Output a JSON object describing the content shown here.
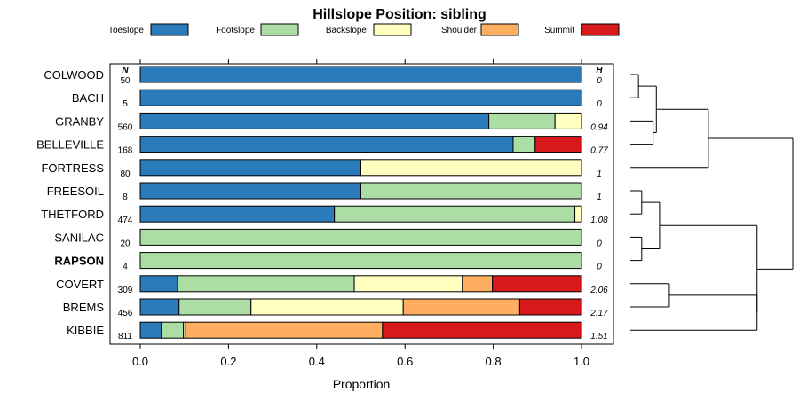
{
  "chart_data": {
    "type": "bar",
    "orientation": "horizontal",
    "stacked": true,
    "title": "Hillslope Position: sibling",
    "xlabel": "Proportion",
    "ylabel": "",
    "xlim": [
      0,
      1
    ],
    "x_ticks": [
      "0.0",
      "0.2",
      "0.4",
      "0.6",
      "0.8",
      "1.0"
    ],
    "x_tick_values": [
      0,
      0.2,
      0.4,
      0.6,
      0.8,
      1.0
    ],
    "n_header": "N",
    "h_header": "H",
    "legend_position": "top",
    "colors": {
      "Toeslope": "#2b7bba",
      "Footslope": "#abdda4",
      "Backslope": "#ffffbf",
      "Shoulder": "#fdae61",
      "Summit": "#d7191c"
    },
    "legend": [
      "Toeslope",
      "Footslope",
      "Backslope",
      "Shoulder",
      "Summit"
    ],
    "categories": [
      "COLWOOD",
      "BACH",
      "GRANBY",
      "BELLEVILLE",
      "FORTRESS",
      "FREESOIL",
      "THETFORD",
      "SANILAC",
      "RAPSON",
      "COVERT",
      "BREMS",
      "KIBBIE"
    ],
    "highlight": "RAPSON",
    "n": [
      "50",
      "5",
      "560",
      "168",
      "80",
      "8",
      "474",
      "20",
      "4",
      "309",
      "456",
      "811"
    ],
    "h": [
      "0",
      "0",
      "0.94",
      "0.77",
      "1",
      "1",
      "1.08",
      "0",
      "0",
      "2.06",
      "2.17",
      "1.51"
    ],
    "series": [
      {
        "name": "Toeslope",
        "values": [
          1.0,
          1.0,
          0.79,
          0.845,
          0.5,
          0.5,
          0.44,
          0.0,
          0.0,
          0.085,
          0.088,
          0.048
        ]
      },
      {
        "name": "Footslope",
        "values": [
          0.0,
          0.0,
          0.15,
          0.05,
          0.0,
          0.5,
          0.545,
          1.0,
          1.0,
          0.4,
          0.163,
          0.05
        ]
      },
      {
        "name": "Backslope",
        "values": [
          0.0,
          0.0,
          0.06,
          0.0,
          0.5,
          0.0,
          0.015,
          0.0,
          0.0,
          0.245,
          0.345,
          0.005
        ]
      },
      {
        "name": "Shoulder",
        "values": [
          0.0,
          0.0,
          0.0,
          0.0,
          0.0,
          0.0,
          0.0,
          0.0,
          0.0,
          0.068,
          0.264,
          0.446
        ]
      },
      {
        "name": "Summit",
        "values": [
          0.0,
          0.0,
          0.0,
          0.105,
          0.0,
          0.0,
          0.0,
          0.0,
          0.0,
          0.202,
          0.14,
          0.451
        ]
      }
    ],
    "dendrogram": {
      "order": [
        "COLWOOD",
        "BACH",
        "GRANBY",
        "BELLEVILLE",
        "FORTRESS",
        "FREESOIL",
        "THETFORD",
        "SANILAC",
        "RAPSON",
        "COVERT",
        "BREMS",
        "KIBBIE"
      ],
      "merges": [
        {
          "left": "COLWOOD",
          "right": "BACH",
          "height": 0.05
        },
        {
          "left": "GRANBY",
          "right": "BELLEVILLE",
          "height": 0.14
        },
        {
          "left": 0,
          "right": 1,
          "height": 0.16
        },
        {
          "left": 2,
          "right": "FORTRESS",
          "height": 0.48
        },
        {
          "left": "FREESOIL",
          "right": "THETFORD",
          "height": 0.07
        },
        {
          "left": "SANILAC",
          "right": "RAPSON",
          "height": 0.07
        },
        {
          "left": 4,
          "right": 5,
          "height": 0.18
        },
        {
          "left": "COVERT",
          "right": "BREMS",
          "height": 0.24
        },
        {
          "left": 7,
          "right": "KIBBIE",
          "height": 0.78
        },
        {
          "left": 6,
          "right": 8,
          "height": 0.78
        },
        {
          "left": 3,
          "right": 9,
          "height": 1.0
        }
      ]
    }
  }
}
